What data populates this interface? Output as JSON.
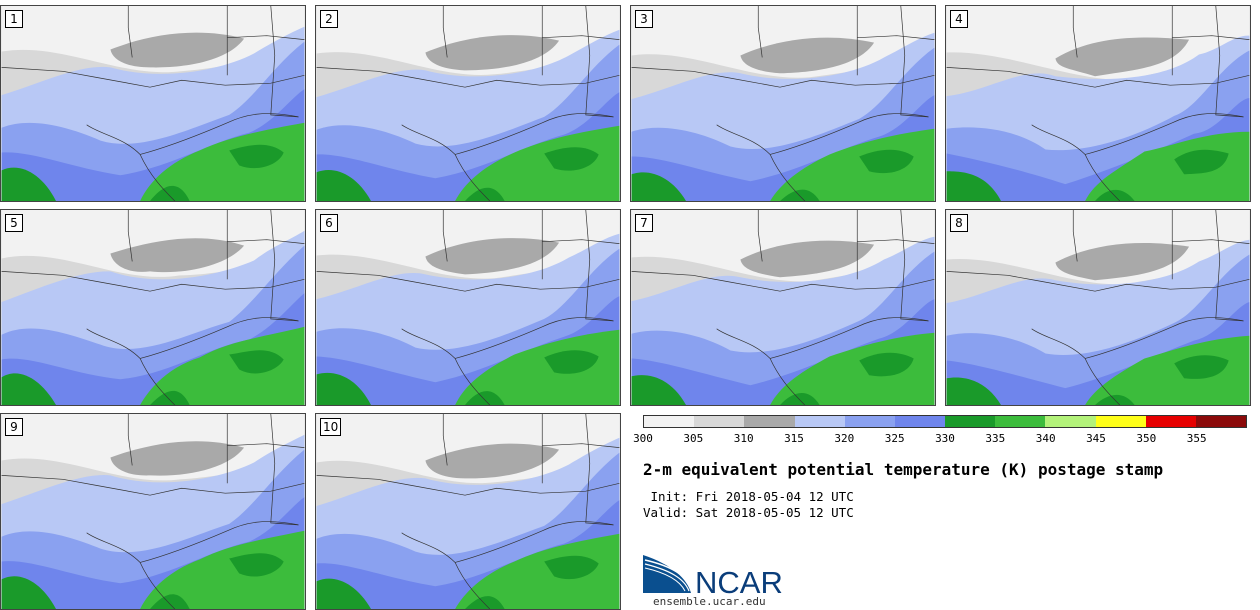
{
  "panels": [
    {
      "label": "1"
    },
    {
      "label": "2"
    },
    {
      "label": "3"
    },
    {
      "label": "4"
    },
    {
      "label": "5"
    },
    {
      "label": "6"
    },
    {
      "label": "7"
    },
    {
      "label": "8"
    },
    {
      "label": "9"
    },
    {
      "label": "10"
    }
  ],
  "colorbar": {
    "colors": [
      "#f2f2f2",
      "#d8d8d8",
      "#a9a9a9",
      "#b8c8f5",
      "#8aa1f0",
      "#6f85ec",
      "#1a9a2a",
      "#3cbc3c",
      "#b3f27a",
      "#ffff19",
      "#e60000",
      "#8b0a0a"
    ],
    "ticks": [
      "300",
      "305",
      "310",
      "315",
      "320",
      "325",
      "330",
      "335",
      "340",
      "345",
      "350",
      "355"
    ]
  },
  "title": "2-m equivalent potential temperature (K) postage stamp",
  "init": " Init: Fri 2018-05-04 12 UTC",
  "valid": "Valid: Sat 2018-05-05 12 UTC",
  "logo": {
    "text": "NCAR"
  },
  "site": "ensemble.ucar.edu"
}
